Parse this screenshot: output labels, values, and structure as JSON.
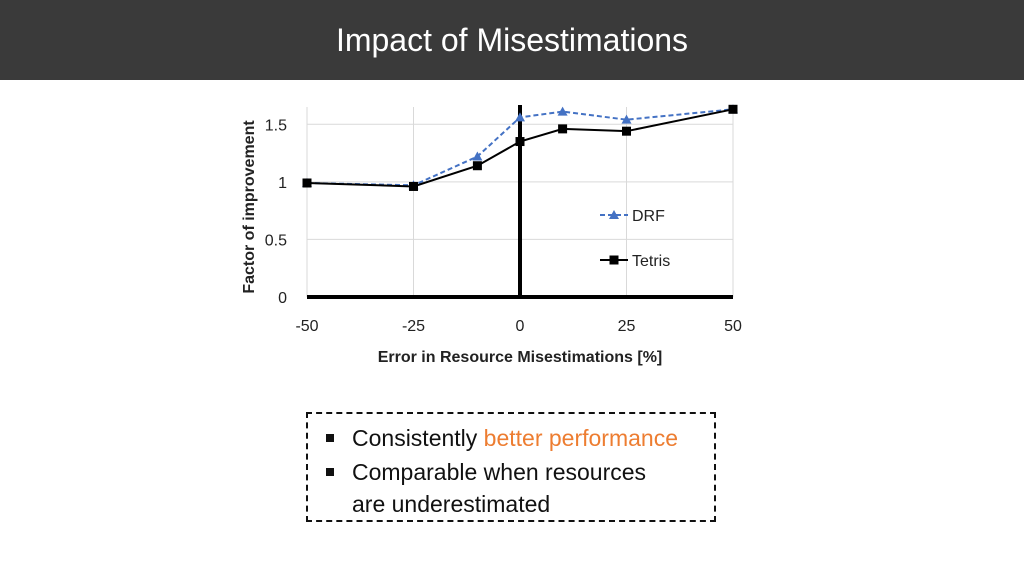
{
  "header": {
    "title": "Impact of Misestimations"
  },
  "chart_data": {
    "type": "line",
    "xlabel": "Error in Resource Misestimations [%]",
    "ylabel": "Factor of improvement",
    "xlim": [
      -50,
      50
    ],
    "ylim": [
      0,
      1.65
    ],
    "x_ticks": [
      "-50",
      "-25",
      "0",
      "25",
      "50"
    ],
    "y_ticks": [
      "0",
      "0.5",
      "1",
      "1.5"
    ],
    "grid": true,
    "legend": "right",
    "series": [
      {
        "name": "DRF",
        "marker": "triangle",
        "dash": "dashed",
        "color": "#4472c4",
        "x": [
          -50,
          -25,
          -10,
          0,
          10,
          25,
          50
        ],
        "y": [
          0.99,
          0.97,
          1.22,
          1.56,
          1.61,
          1.54,
          1.63
        ]
      },
      {
        "name": "Tetris",
        "marker": "square",
        "dash": "solid",
        "color": "#000000",
        "x": [
          -50,
          -25,
          -10,
          0,
          10,
          25,
          50
        ],
        "y": [
          0.99,
          0.96,
          1.14,
          1.35,
          1.46,
          1.44,
          1.63
        ]
      }
    ]
  },
  "callout": {
    "item1_prefix": "Consistently ",
    "item1_highlight": "better performance",
    "item2_line1": "Comparable when resources",
    "item2_line2": "are underestimated",
    "highlight_color": "#ed7d31"
  }
}
